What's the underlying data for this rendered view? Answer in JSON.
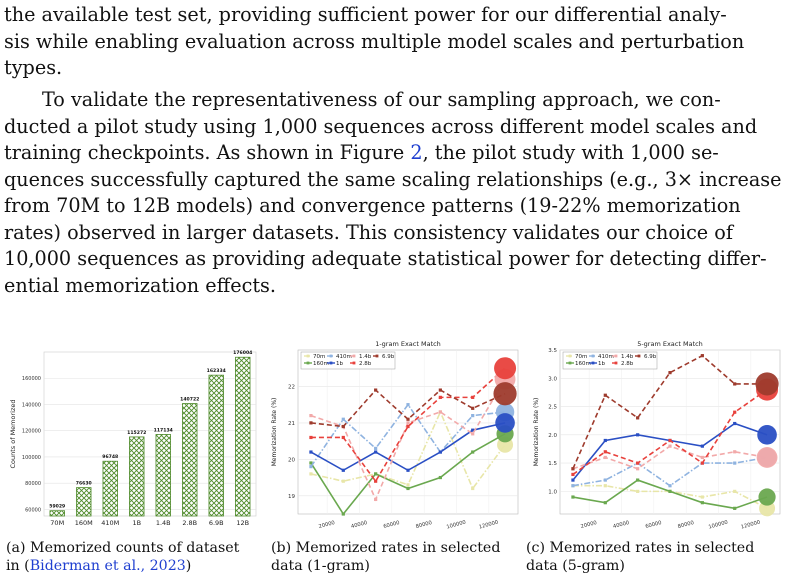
{
  "text": {
    "p1": [
      "the available test set, providing sufficient power for our differential analy-",
      "sis while enabling evaluation across multiple model scales and perturbation",
      "types."
    ],
    "p2": [
      "To validate the representativeness of our sampling approach, we con-",
      "ducted a pilot study using 1,000 sequences across different model scales and",
      "training checkpoints.  As shown in Figure ",
      "2",
      ", the pilot study with 1,000 se-",
      "quences successfully captured the same scaling relationships (e.g., 3× increase",
      "from 70M to 12B models) and convergence patterns (19-22% memorization",
      "rates) observed in larger datasets.  This consistency validates our choice of",
      "10,000 sequences as providing adequate statistical power for detecting differ-",
      "ential memorization effects."
    ]
  },
  "captions": {
    "a_line1": "(a) Memorized counts of dataset",
    "a_line2_pre": "in (",
    "a_cite": "Biderman et al., 2023",
    "a_line2_post": ")",
    "b_line1": "(b) Memorized rates in selected",
    "b_line2": "data (1-gram)",
    "c_line1": "(c) Memorized rates in selected",
    "c_line2": "data (5-gram)"
  },
  "colors": {
    "70m": "#e8e6a8",
    "160m": "#6aa84f",
    "410m": "#8fb3e0",
    "1b": "#2a4fc4",
    "1.4b": "#f2a9a9",
    "2.8b": "#e8413c",
    "6.9b": "#9e3b2d",
    "bar_fill": "#8fbf6a",
    "bar_edge": "#4e8a2a",
    "link": "#1f3fd0"
  },
  "chart_data": [
    {
      "type": "bar",
      "categories": [
        "70M",
        "160M",
        "410M",
        "1B",
        "1.4B",
        "2.8B",
        "6.9B",
        "12B"
      ],
      "values": [
        59029,
        76630,
        96748,
        115272,
        117134,
        140722,
        162334,
        176004
      ],
      "value_labels": [
        "59029",
        "76630",
        "96748",
        "115272",
        "117134",
        "140722",
        "162334",
        "176004"
      ],
      "ylabel": "Counts of Memorized",
      "ylim": [
        55000,
        180000
      ],
      "yticks": [
        60000,
        80000,
        100000,
        120000,
        140000,
        160000
      ],
      "ytick_labels": [
        "60000",
        "80000",
        "100000",
        "120000",
        "140000",
        "160000"
      ],
      "grid": true
    },
    {
      "type": "line",
      "title": "1-gram Exact Match",
      "ylabel": "Memorization Rate (%)",
      "x": [
        10000,
        30000,
        50000,
        70000,
        90000,
        110000,
        130000
      ],
      "xticks": [
        20000,
        40000,
        60000,
        80000,
        100000,
        120000
      ],
      "xtick_labels": [
        "20000",
        "40000",
        "60000",
        "80000",
        "100000",
        "120000"
      ],
      "ylim": [
        18.5,
        23.0
      ],
      "yticks": [
        19,
        20,
        21,
        22
      ],
      "ytick_labels": [
        "19",
        "20",
        "21",
        "22"
      ],
      "legend": "top-left",
      "series": [
        {
          "name": "70m",
          "key": "70m",
          "style": "dashdot",
          "values": [
            19.6,
            19.4,
            19.6,
            19.3,
            21.3,
            19.2,
            20.4
          ]
        },
        {
          "name": "160m",
          "key": "160m",
          "style": "solid",
          "values": [
            19.9,
            18.5,
            19.6,
            19.2,
            19.5,
            20.2,
            20.7
          ]
        },
        {
          "name": "410m",
          "key": "410m",
          "style": "dashdot",
          "values": [
            19.8,
            21.1,
            20.3,
            21.5,
            20.2,
            21.2,
            21.3
          ]
        },
        {
          "name": "1b",
          "key": "1b",
          "style": "solid",
          "values": [
            20.2,
            19.7,
            20.2,
            19.7,
            20.2,
            20.8,
            21.0
          ]
        },
        {
          "name": "1.4b",
          "key": "1.4b",
          "style": "dashed",
          "values": [
            21.2,
            20.9,
            18.9,
            21.0,
            21.3,
            20.7,
            22.2
          ]
        },
        {
          "name": "2.8b",
          "key": "2.8b",
          "style": "dashed",
          "values": [
            20.6,
            20.6,
            19.4,
            20.9,
            21.7,
            21.7,
            22.5
          ]
        },
        {
          "name": "6.9b",
          "key": "6.9b",
          "style": "dashed",
          "values": [
            21.0,
            20.9,
            21.9,
            21.1,
            21.9,
            21.4,
            21.8
          ]
        }
      ]
    },
    {
      "type": "line",
      "title": "5-gram Exact Match",
      "ylabel": "Memorization Rate (%)",
      "x": [
        10000,
        30000,
        50000,
        70000,
        90000,
        110000,
        130000
      ],
      "xticks": [
        20000,
        40000,
        60000,
        80000,
        100000,
        120000
      ],
      "xtick_labels": [
        "20000",
        "40000",
        "60000",
        "80000",
        "100000",
        "120000"
      ],
      "ylim": [
        0.6,
        3.5
      ],
      "yticks": [
        1.0,
        1.5,
        2.0,
        2.5,
        3.0,
        3.5
      ],
      "ytick_labels": [
        "1.0",
        "1.5",
        "2.0",
        "2.5",
        "3.0",
        "3.5"
      ],
      "legend": "top-left",
      "series": [
        {
          "name": "70m",
          "key": "70m",
          "style": "dashdot",
          "values": [
            1.1,
            1.1,
            1.0,
            1.0,
            0.9,
            1.0,
            0.7
          ]
        },
        {
          "name": "160m",
          "key": "160m",
          "style": "solid",
          "values": [
            0.9,
            0.8,
            1.2,
            1.0,
            0.8,
            0.7,
            0.9
          ]
        },
        {
          "name": "410m",
          "key": "410m",
          "style": "dashdot",
          "values": [
            1.1,
            1.2,
            1.5,
            1.1,
            1.5,
            1.5,
            1.6
          ]
        },
        {
          "name": "1b",
          "key": "1b",
          "style": "solid",
          "values": [
            1.2,
            1.9,
            2.0,
            1.9,
            1.8,
            2.2,
            2.0
          ]
        },
        {
          "name": "1.4b",
          "key": "1.4b",
          "style": "dashed",
          "values": [
            1.4,
            1.6,
            1.4,
            1.8,
            1.6,
            1.7,
            1.6
          ]
        },
        {
          "name": "2.8b",
          "key": "2.8b",
          "style": "dashed",
          "values": [
            1.3,
            1.7,
            1.5,
            1.9,
            1.5,
            2.4,
            2.8
          ]
        },
        {
          "name": "6.9b",
          "key": "6.9b",
          "style": "dashed",
          "values": [
            1.4,
            2.7,
            2.3,
            3.1,
            3.4,
            2.9,
            2.9
          ]
        }
      ]
    }
  ]
}
